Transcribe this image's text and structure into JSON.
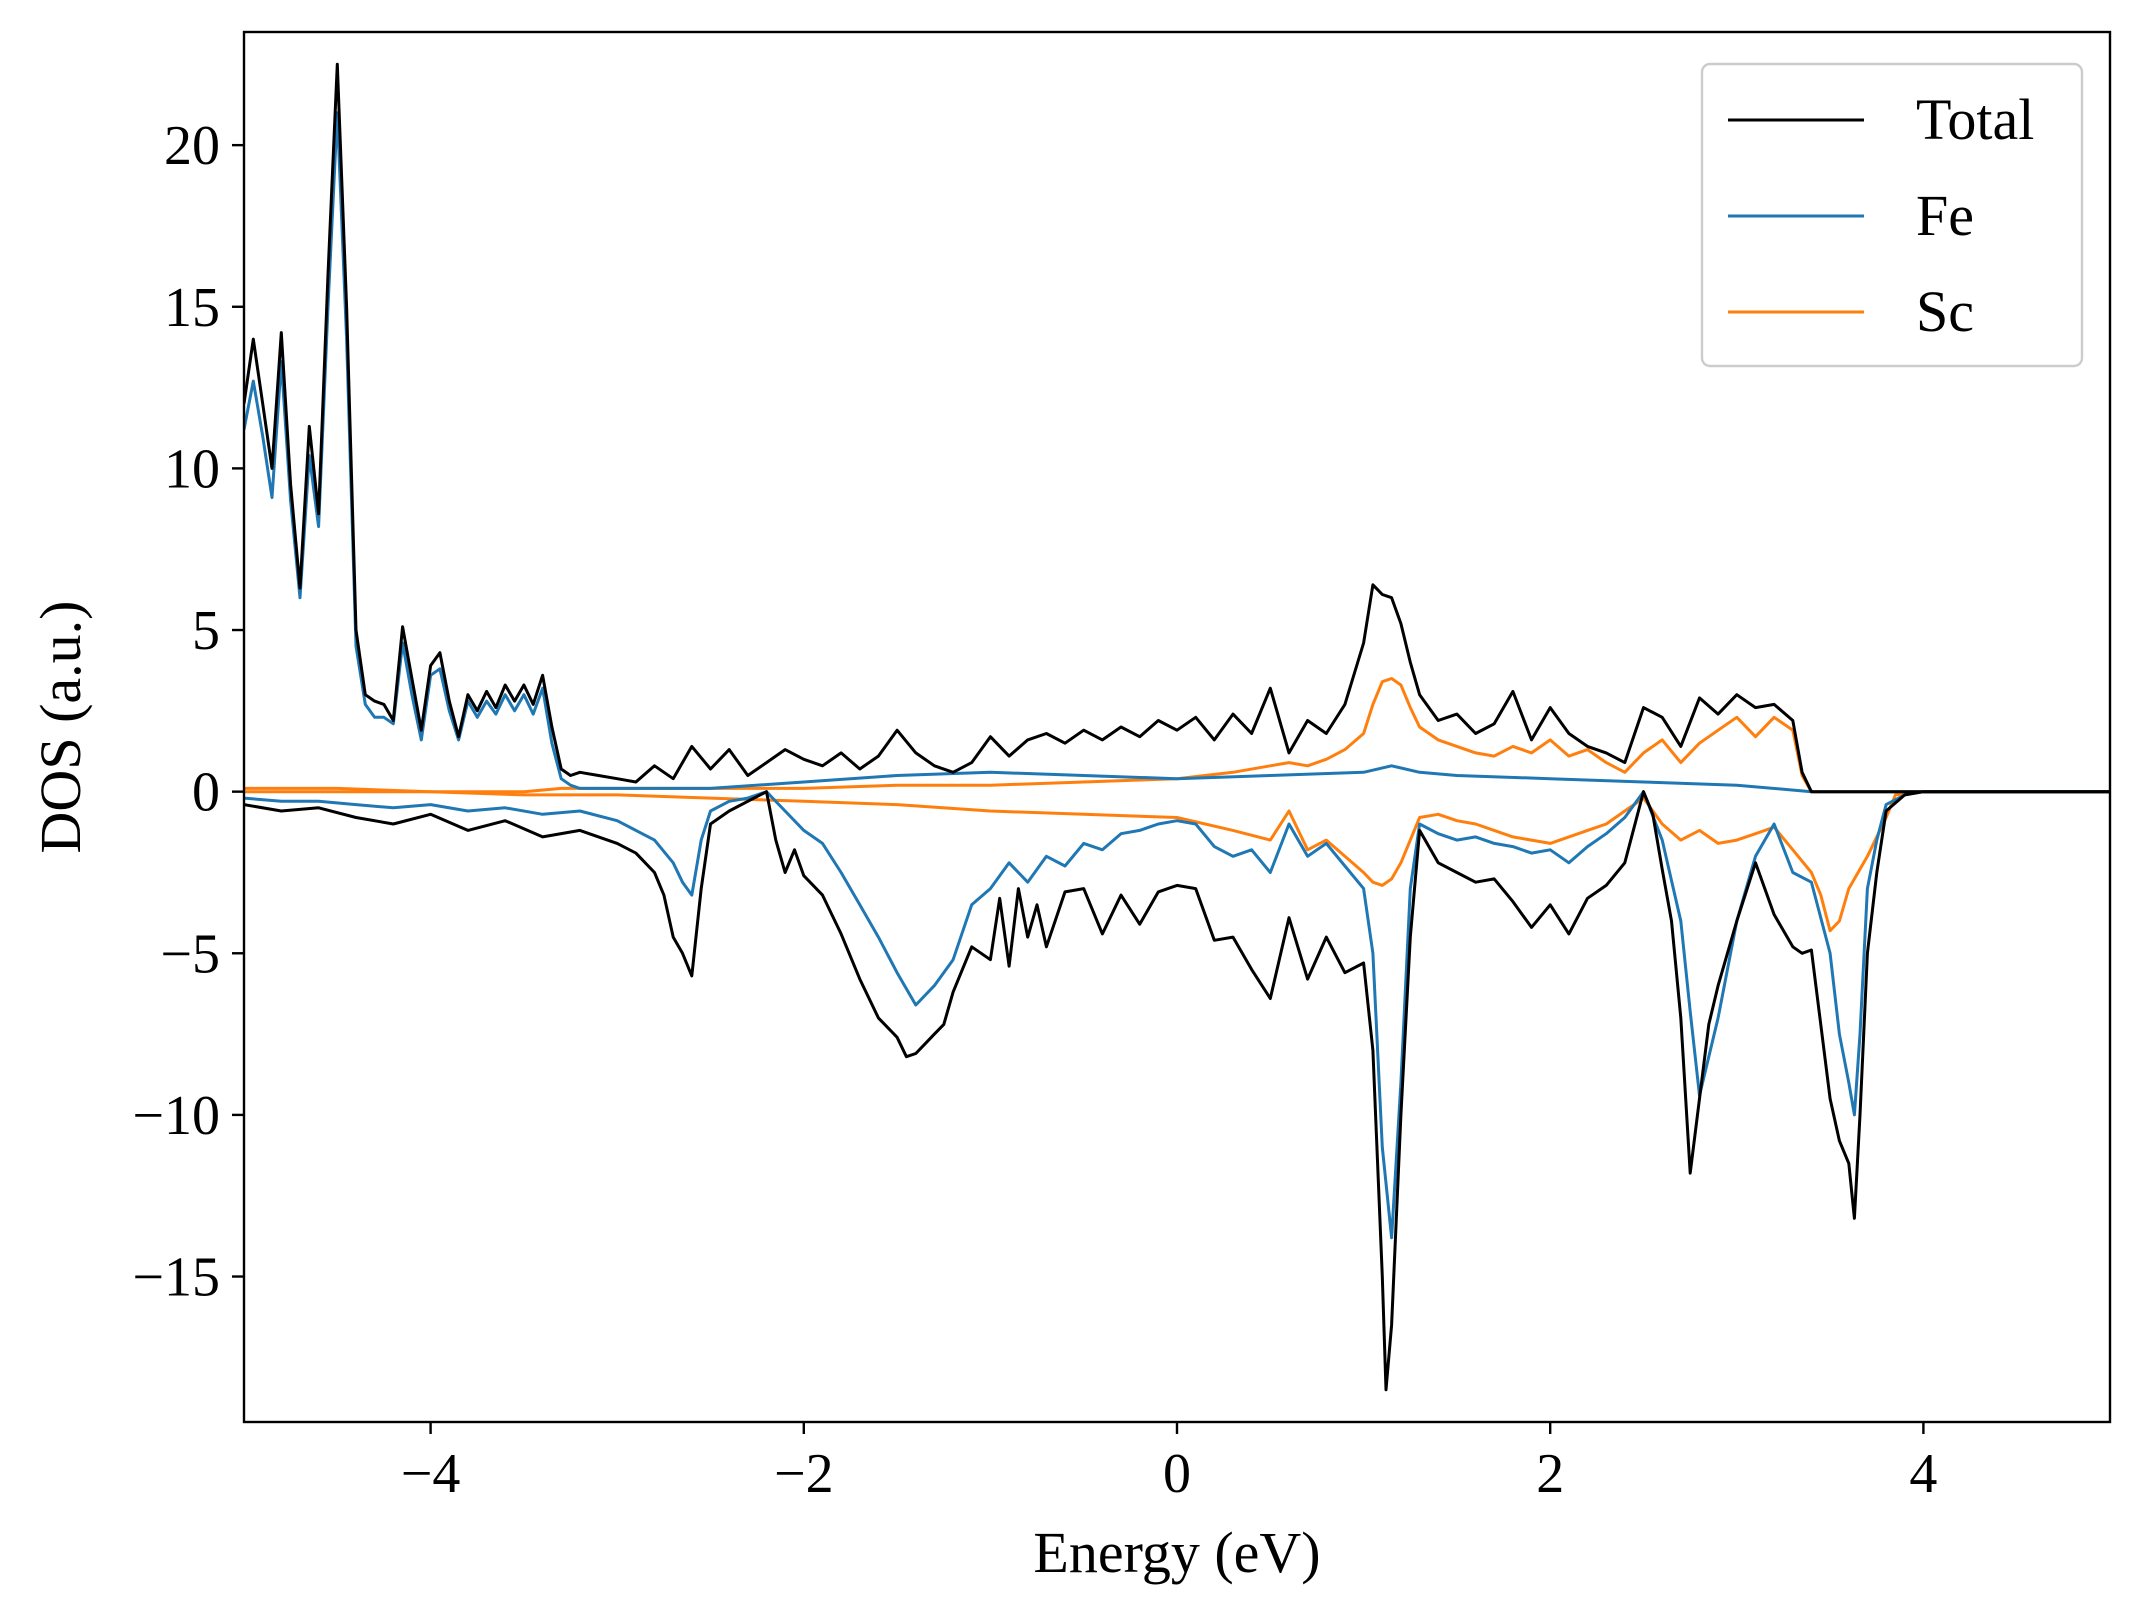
{
  "chart_data": {
    "type": "line",
    "title": "",
    "xlabel": "Energy (eV)",
    "ylabel": "DOS (a.u.)",
    "xlim": [
      -5,
      5
    ],
    "ylim": [
      -19.5,
      23.5
    ],
    "xticks": [
      -4,
      -2,
      0,
      2,
      4
    ],
    "xtick_labels": [
      "−4",
      "−2",
      "0",
      "2",
      "4"
    ],
    "yticks": [
      20,
      15,
      10,
      5,
      0,
      -5,
      -10,
      -15
    ],
    "ytick_labels": [
      "20",
      "15",
      "10",
      "5",
      "0",
      "−5",
      "−10",
      "−15"
    ],
    "grid": false,
    "legend_position": "top-right",
    "series": [
      {
        "name": "Total",
        "color": "#000000",
        "up": {
          "x": [
            -5.0,
            -4.95,
            -4.9,
            -4.85,
            -4.8,
            -4.75,
            -4.7,
            -4.65,
            -4.6,
            -4.55,
            -4.5,
            -4.45,
            -4.4,
            -4.35,
            -4.3,
            -4.25,
            -4.2,
            -4.15,
            -4.1,
            -4.05,
            -4.0,
            -3.95,
            -3.9,
            -3.85,
            -3.8,
            -3.75,
            -3.7,
            -3.65,
            -3.6,
            -3.55,
            -3.5,
            -3.45,
            -3.4,
            -3.35,
            -3.3,
            -3.25,
            -3.2,
            -3.1,
            -3.0,
            -2.9,
            -2.8,
            -2.7,
            -2.6,
            -2.5,
            -2.4,
            -2.3,
            -2.2,
            -2.1,
            -2.0,
            -1.9,
            -1.8,
            -1.7,
            -1.6,
            -1.5,
            -1.4,
            -1.3,
            -1.2,
            -1.1,
            -1.0,
            -0.9,
            -0.8,
            -0.7,
            -0.6,
            -0.5,
            -0.4,
            -0.3,
            -0.2,
            -0.1,
            0.0,
            0.1,
            0.2,
            0.3,
            0.4,
            0.5,
            0.6,
            0.7,
            0.8,
            0.9,
            1.0,
            1.05,
            1.1,
            1.15,
            1.2,
            1.25,
            1.3,
            1.4,
            1.5,
            1.6,
            1.7,
            1.8,
            1.9,
            2.0,
            2.1,
            2.2,
            2.3,
            2.4,
            2.5,
            2.6,
            2.7,
            2.8,
            2.9,
            3.0,
            3.1,
            3.2,
            3.3,
            3.35,
            3.4,
            3.5,
            4.0,
            4.5,
            5.0
          ],
          "y": [
            12.0,
            14.0,
            12.0,
            10.0,
            14.2,
            9.5,
            6.3,
            11.3,
            8.6,
            16.0,
            22.5,
            15.0,
            5.0,
            3.0,
            2.8,
            2.7,
            2.2,
            5.1,
            3.5,
            1.9,
            3.9,
            4.3,
            2.8,
            1.7,
            3.0,
            2.5,
            3.1,
            2.6,
            3.3,
            2.8,
            3.3,
            2.7,
            3.6,
            2.0,
            0.7,
            0.5,
            0.6,
            0.5,
            0.4,
            0.3,
            0.8,
            0.4,
            1.4,
            0.7,
            1.3,
            0.5,
            0.9,
            1.3,
            1.0,
            0.8,
            1.2,
            0.7,
            1.1,
            1.9,
            1.2,
            0.8,
            0.6,
            0.9,
            1.7,
            1.1,
            1.6,
            1.8,
            1.5,
            1.9,
            1.6,
            2.0,
            1.7,
            2.2,
            1.9,
            2.3,
            1.6,
            2.4,
            1.8,
            3.2,
            1.2,
            2.2,
            1.8,
            2.7,
            4.6,
            6.4,
            6.1,
            6.0,
            5.2,
            4.0,
            3.0,
            2.2,
            2.4,
            1.8,
            2.1,
            3.1,
            1.6,
            2.6,
            1.8,
            1.4,
            1.2,
            0.9,
            2.6,
            2.3,
            1.4,
            2.9,
            2.4,
            3.0,
            2.6,
            2.7,
            2.2,
            0.6,
            0.0,
            0.0,
            0.0,
            0.0,
            0.0
          ]
        },
        "down": {
          "x": [
            -5.0,
            -4.8,
            -4.6,
            -4.4,
            -4.2,
            -4.0,
            -3.8,
            -3.6,
            -3.4,
            -3.2,
            -3.0,
            -2.9,
            -2.8,
            -2.75,
            -2.7,
            -2.65,
            -2.6,
            -2.55,
            -2.5,
            -2.4,
            -2.3,
            -2.2,
            -2.15,
            -2.1,
            -2.05,
            -2.0,
            -1.9,
            -1.8,
            -1.7,
            -1.6,
            -1.5,
            -1.45,
            -1.4,
            -1.35,
            -1.3,
            -1.25,
            -1.2,
            -1.1,
            -1.0,
            -0.95,
            -0.9,
            -0.85,
            -0.8,
            -0.75,
            -0.7,
            -0.6,
            -0.5,
            -0.4,
            -0.3,
            -0.2,
            -0.1,
            0.0,
            0.1,
            0.2,
            0.3,
            0.4,
            0.5,
            0.6,
            0.7,
            0.8,
            0.9,
            1.0,
            1.05,
            1.1,
            1.12,
            1.15,
            1.2,
            1.25,
            1.3,
            1.4,
            1.5,
            1.6,
            1.7,
            1.8,
            1.9,
            2.0,
            2.1,
            2.2,
            2.3,
            2.4,
            2.5,
            2.55,
            2.6,
            2.65,
            2.7,
            2.75,
            2.8,
            2.85,
            2.9,
            3.0,
            3.1,
            3.2,
            3.3,
            3.35,
            3.4,
            3.5,
            3.55,
            3.6,
            3.63,
            3.66,
            3.7,
            3.75,
            3.8,
            3.9,
            4.0,
            4.5,
            5.0
          ],
          "y": [
            -0.4,
            -0.6,
            -0.5,
            -0.8,
            -1.0,
            -0.7,
            -1.2,
            -0.9,
            -1.4,
            -1.2,
            -1.6,
            -1.9,
            -2.5,
            -3.2,
            -4.5,
            -5.0,
            -5.7,
            -3.0,
            -1.0,
            -0.6,
            -0.3,
            0.0,
            -1.5,
            -2.5,
            -1.8,
            -2.6,
            -3.2,
            -4.4,
            -5.8,
            -7.0,
            -7.6,
            -8.2,
            -8.1,
            -7.8,
            -7.5,
            -7.2,
            -6.2,
            -4.8,
            -5.2,
            -3.3,
            -5.4,
            -3.0,
            -4.5,
            -3.5,
            -4.8,
            -3.1,
            -3.0,
            -4.4,
            -3.2,
            -4.1,
            -3.1,
            -2.9,
            -3.0,
            -4.6,
            -4.5,
            -5.5,
            -6.4,
            -3.9,
            -5.8,
            -4.5,
            -5.6,
            -5.3,
            -8.0,
            -15.0,
            -18.5,
            -16.5,
            -10.0,
            -4.5,
            -1.2,
            -2.2,
            -2.5,
            -2.8,
            -2.7,
            -3.4,
            -4.2,
            -3.5,
            -4.4,
            -3.3,
            -2.9,
            -2.2,
            0.0,
            -0.7,
            -2.4,
            -4.0,
            -7.0,
            -11.8,
            -9.5,
            -7.2,
            -6.0,
            -4.0,
            -2.2,
            -3.8,
            -4.8,
            -5.0,
            -4.9,
            -9.5,
            -10.8,
            -11.5,
            -13.2,
            -10.0,
            -5.0,
            -2.5,
            -0.6,
            -0.1,
            0.0,
            0.0,
            0.0
          ]
        }
      },
      {
        "name": "Fe",
        "color": "#1f77b4",
        "up": {
          "x": [
            -5.0,
            -4.95,
            -4.9,
            -4.85,
            -4.8,
            -4.75,
            -4.7,
            -4.65,
            -4.6,
            -4.55,
            -4.5,
            -4.45,
            -4.4,
            -4.35,
            -4.3,
            -4.25,
            -4.2,
            -4.15,
            -4.1,
            -4.05,
            -4.0,
            -3.95,
            -3.9,
            -3.85,
            -3.8,
            -3.75,
            -3.7,
            -3.65,
            -3.6,
            -3.55,
            -3.5,
            -3.45,
            -3.4,
            -3.35,
            -3.3,
            -3.25,
            -3.2,
            -3.0,
            -2.5,
            -2.0,
            -1.5,
            -1.0,
            -0.5,
            0.0,
            0.5,
            1.0,
            1.15,
            1.3,
            1.5,
            2.0,
            2.5,
            3.0,
            3.4,
            3.5,
            4.0,
            5.0
          ],
          "y": [
            11.2,
            12.7,
            11.0,
            9.1,
            13.3,
            9.0,
            6.0,
            10.4,
            8.2,
            15.0,
            21.0,
            14.0,
            4.5,
            2.7,
            2.3,
            2.3,
            2.1,
            4.6,
            3.0,
            1.6,
            3.6,
            3.8,
            2.5,
            1.6,
            2.8,
            2.3,
            2.8,
            2.4,
            3.0,
            2.5,
            3.0,
            2.4,
            3.2,
            1.5,
            0.4,
            0.2,
            0.1,
            0.1,
            0.1,
            0.3,
            0.5,
            0.6,
            0.5,
            0.4,
            0.5,
            0.6,
            0.8,
            0.6,
            0.5,
            0.4,
            0.3,
            0.2,
            0.0,
            0.0,
            0.0,
            0.0
          ]
        },
        "down": {
          "x": [
            -5.0,
            -4.8,
            -4.6,
            -4.4,
            -4.2,
            -4.0,
            -3.8,
            -3.6,
            -3.4,
            -3.2,
            -3.0,
            -2.9,
            -2.8,
            -2.7,
            -2.65,
            -2.6,
            -2.55,
            -2.5,
            -2.4,
            -2.3,
            -2.2,
            -2.1,
            -2.0,
            -1.9,
            -1.8,
            -1.7,
            -1.6,
            -1.5,
            -1.4,
            -1.3,
            -1.2,
            -1.1,
            -1.0,
            -0.9,
            -0.8,
            -0.7,
            -0.6,
            -0.5,
            -0.4,
            -0.3,
            -0.2,
            -0.1,
            0.0,
            0.1,
            0.2,
            0.3,
            0.4,
            0.5,
            0.6,
            0.7,
            0.8,
            0.9,
            1.0,
            1.05,
            1.1,
            1.15,
            1.2,
            1.25,
            1.3,
            1.4,
            1.5,
            1.6,
            1.7,
            1.8,
            1.9,
            2.0,
            2.1,
            2.2,
            2.3,
            2.4,
            2.5,
            2.6,
            2.7,
            2.75,
            2.8,
            2.9,
            3.0,
            3.1,
            3.2,
            3.3,
            3.4,
            3.5,
            3.55,
            3.6,
            3.63,
            3.66,
            3.7,
            3.75,
            3.8,
            3.9,
            4.0,
            5.0
          ],
          "y": [
            -0.2,
            -0.3,
            -0.3,
            -0.4,
            -0.5,
            -0.4,
            -0.6,
            -0.5,
            -0.7,
            -0.6,
            -0.9,
            -1.2,
            -1.5,
            -2.2,
            -2.8,
            -3.2,
            -1.5,
            -0.6,
            -0.3,
            -0.2,
            0.0,
            -0.6,
            -1.2,
            -1.6,
            -2.5,
            -3.5,
            -4.5,
            -5.6,
            -6.6,
            -6.0,
            -5.2,
            -3.5,
            -3.0,
            -2.2,
            -2.8,
            -2.0,
            -2.3,
            -1.6,
            -1.8,
            -1.3,
            -1.2,
            -1.0,
            -0.9,
            -1.0,
            -1.7,
            -2.0,
            -1.8,
            -2.5,
            -1.0,
            -2.0,
            -1.6,
            -2.3,
            -3.0,
            -5.0,
            -11.0,
            -13.8,
            -9.0,
            -3.0,
            -1.0,
            -1.3,
            -1.5,
            -1.4,
            -1.6,
            -1.7,
            -1.9,
            -1.8,
            -2.2,
            -1.7,
            -1.3,
            -0.8,
            0.0,
            -1.5,
            -4.0,
            -6.8,
            -9.4,
            -7.0,
            -4.0,
            -2.0,
            -1.0,
            -2.5,
            -2.8,
            -5.0,
            -7.5,
            -9.0,
            -10.0,
            -7.5,
            -3.0,
            -1.5,
            -0.4,
            -0.1,
            0.0,
            0.0
          ]
        }
      },
      {
        "name": "Sc",
        "color": "#ff7f0e",
        "up": {
          "x": [
            -5.0,
            -4.5,
            -4.0,
            -3.5,
            -3.3,
            -3.0,
            -2.5,
            -2.0,
            -1.5,
            -1.0,
            -0.5,
            0.0,
            0.3,
            0.5,
            0.6,
            0.7,
            0.8,
            0.9,
            1.0,
            1.05,
            1.1,
            1.15,
            1.2,
            1.25,
            1.3,
            1.4,
            1.5,
            1.6,
            1.7,
            1.8,
            1.9,
            2.0,
            2.1,
            2.2,
            2.3,
            2.4,
            2.5,
            2.6,
            2.7,
            2.8,
            2.9,
            3.0,
            3.1,
            3.2,
            3.3,
            3.35,
            3.4,
            3.5,
            4.0,
            5.0
          ],
          "y": [
            0.0,
            0.0,
            0.0,
            0.0,
            0.1,
            0.1,
            0.1,
            0.1,
            0.2,
            0.2,
            0.3,
            0.4,
            0.6,
            0.8,
            0.9,
            0.8,
            1.0,
            1.3,
            1.8,
            2.7,
            3.4,
            3.5,
            3.3,
            2.6,
            2.0,
            1.6,
            1.4,
            1.2,
            1.1,
            1.4,
            1.2,
            1.6,
            1.1,
            1.3,
            0.9,
            0.6,
            1.2,
            1.6,
            0.9,
            1.5,
            1.9,
            2.3,
            1.7,
            2.3,
            1.9,
            0.5,
            0.0,
            0.0,
            0.0,
            0.0
          ]
        },
        "down": {
          "x": [
            -5.0,
            -4.5,
            -4.0,
            -3.5,
            -3.0,
            -2.5,
            -2.0,
            -1.5,
            -1.0,
            -0.5,
            0.0,
            0.3,
            0.5,
            0.6,
            0.7,
            0.8,
            0.9,
            1.0,
            1.05,
            1.1,
            1.15,
            1.2,
            1.25,
            1.3,
            1.4,
            1.5,
            1.6,
            1.7,
            1.8,
            1.9,
            2.0,
            2.1,
            2.2,
            2.3,
            2.4,
            2.5,
            2.6,
            2.7,
            2.8,
            2.9,
            3.0,
            3.1,
            3.2,
            3.3,
            3.4,
            3.45,
            3.5,
            3.55,
            3.6,
            3.7,
            3.8,
            3.85,
            4.0,
            5.0
          ],
          "y": [
            0.1,
            0.1,
            0.0,
            -0.1,
            -0.1,
            -0.2,
            -0.3,
            -0.4,
            -0.6,
            -0.7,
            -0.8,
            -1.2,
            -1.5,
            -0.6,
            -1.8,
            -1.5,
            -2.0,
            -2.5,
            -2.8,
            -2.9,
            -2.7,
            -2.2,
            -1.5,
            -0.8,
            -0.7,
            -0.9,
            -1.0,
            -1.2,
            -1.4,
            -1.5,
            -1.6,
            -1.4,
            -1.2,
            -1.0,
            -0.6,
            -0.2,
            -1.0,
            -1.5,
            -1.2,
            -1.6,
            -1.5,
            -1.3,
            -1.1,
            -1.8,
            -2.5,
            -3.2,
            -4.3,
            -4.0,
            -3.0,
            -2.0,
            -0.8,
            -0.1,
            0.0,
            0.0
          ]
        }
      }
    ]
  }
}
